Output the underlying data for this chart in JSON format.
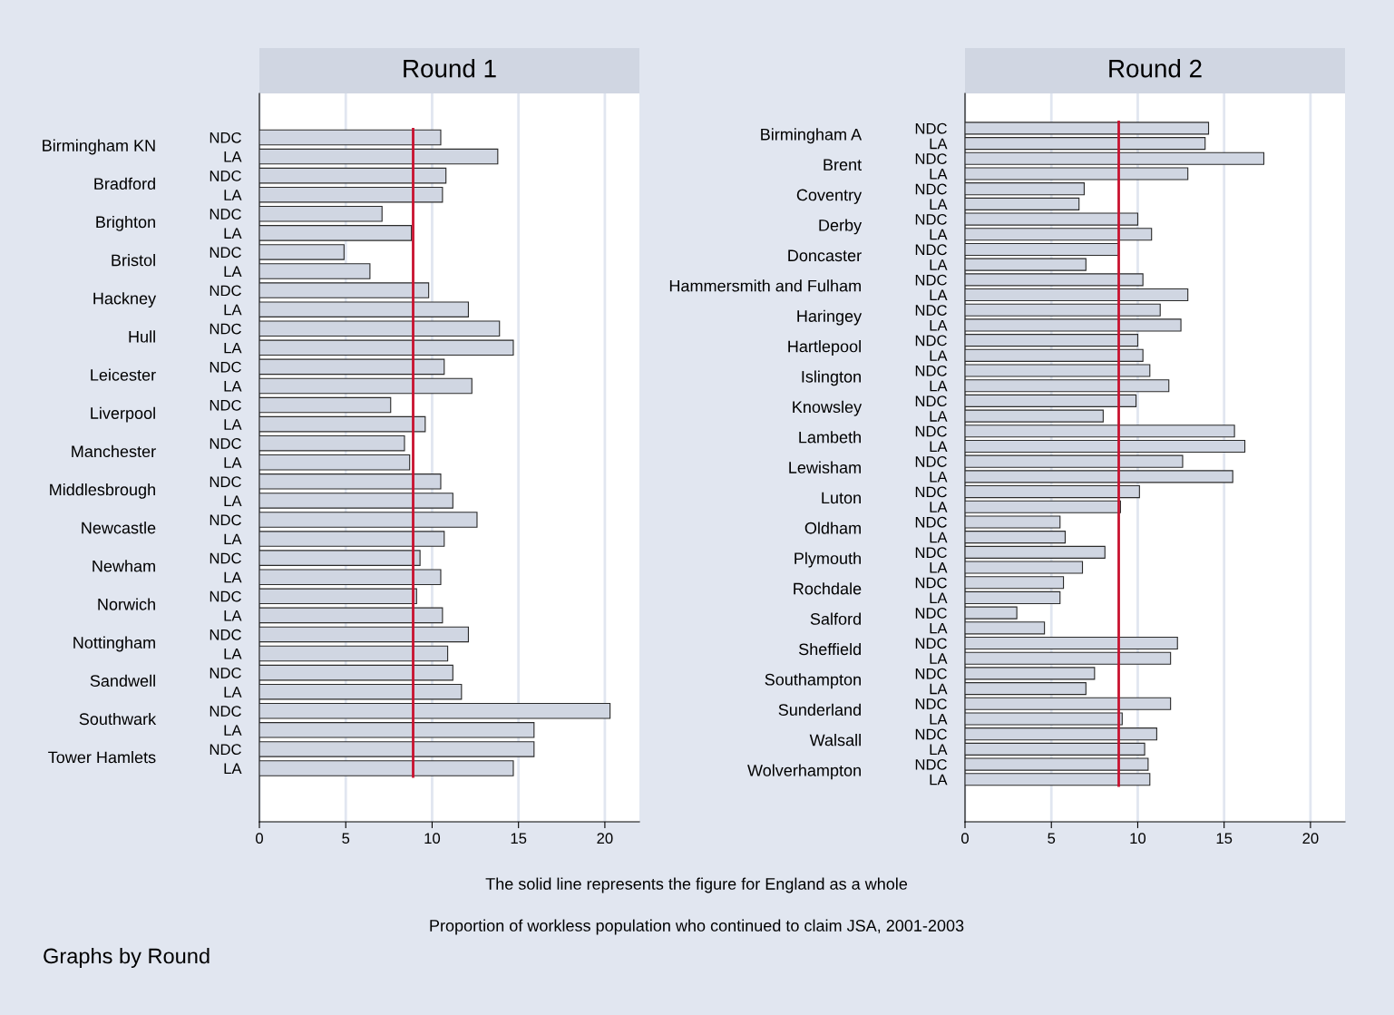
{
  "chart_data": [
    {
      "type": "bar",
      "orientation": "horizontal",
      "title": "Round 1",
      "color": "#d0d6e2",
      "grid": "x",
      "xlim": [
        0,
        22
      ],
      "xticks": [
        0,
        5,
        10,
        15,
        20
      ],
      "categories": [
        "NDC",
        "LA",
        "NDC",
        "LA",
        "NDC",
        "LA",
        "NDC",
        "LA",
        "NDC",
        "LA",
        "NDC",
        "LA",
        "NDC",
        "LA",
        "NDC",
        "LA",
        "NDC",
        "LA",
        "NDC",
        "LA",
        "NDC",
        "LA",
        "NDC",
        "LA",
        "NDC",
        "LA",
        "NDC",
        "LA",
        "NDC",
        "LA",
        "NDC",
        "LA",
        "NDC",
        "LA"
      ],
      "values": [
        10.5,
        13.8,
        10.8,
        10.6,
        7.1,
        8.8,
        4.9,
        6.4,
        9.8,
        12.1,
        13.9,
        14.7,
        10.7,
        12.3,
        7.6,
        9.6,
        8.4,
        8.7,
        10.5,
        11.2,
        12.6,
        10.7,
        9.3,
        10.5,
        9.1,
        10.6,
        12.1,
        10.9,
        11.2,
        11.7,
        20.3,
        15.9,
        15.9,
        14.7
      ],
      "ref_lines": [
        {
          "axis": "x",
          "value": 8.9,
          "label": null,
          "color": "#c8102e"
        }
      ],
      "annotations": [
        "Birmingham KN",
        "Bradford",
        "Brighton",
        "Bristol",
        "Hackney",
        "Hull",
        "Leicester",
        "Liverpool",
        "Manchester",
        "Middlesbrough",
        "Newcastle",
        "Newham",
        "Norwich",
        "Nottingham",
        "Sandwell",
        "Southwark",
        "Tower Hamlets"
      ]
    },
    {
      "type": "bar",
      "orientation": "horizontal",
      "title": "Round 2",
      "color": "#d0d6e2",
      "grid": "x",
      "xlim": [
        0,
        22
      ],
      "xticks": [
        0,
        5,
        10,
        15,
        20
      ],
      "categories": [
        "NDC",
        "LA",
        "NDC",
        "LA",
        "NDC",
        "LA",
        "NDC",
        "LA",
        "NDC",
        "LA",
        "NDC",
        "LA",
        "NDC",
        "LA",
        "NDC",
        "LA",
        "NDC",
        "LA",
        "NDC",
        "LA",
        "NDC",
        "LA",
        "NDC",
        "LA",
        "NDC",
        "LA",
        "NDC",
        "LA",
        "NDC",
        "LA",
        "NDC",
        "LA",
        "NDC",
        "LA",
        "NDC",
        "LA",
        "NDC",
        "LA",
        "NDC",
        "LA",
        "NDC",
        "LA",
        "NDC",
        "LA"
      ],
      "values": [
        14.1,
        13.9,
        17.3,
        12.9,
        6.9,
        6.6,
        10.0,
        10.8,
        8.9,
        7.0,
        10.3,
        12.9,
        11.3,
        12.5,
        10.0,
        10.3,
        10.7,
        11.8,
        9.9,
        8.0,
        15.6,
        16.2,
        12.6,
        15.5,
        10.1,
        9.0,
        5.5,
        5.8,
        8.1,
        6.8,
        5.7,
        5.5,
        3.0,
        4.6,
        12.3,
        11.9,
        7.5,
        7.0,
        11.9,
        9.1,
        11.1,
        10.4,
        10.6,
        10.7
      ],
      "ref_lines": [
        {
          "axis": "x",
          "value": 8.9,
          "label": null,
          "color": "#c8102e"
        }
      ],
      "annotations": [
        "Birmingham A",
        "Brent",
        "Coventry",
        "Derby",
        "Doncaster",
        "Hammersmith and Fulham",
        "Haringey",
        "Hartlepool",
        "Islington",
        "Knowsley",
        "Lambeth",
        "Lewisham",
        "Luton",
        "Oldham",
        "Plymouth",
        "Rochdale",
        "Salford",
        "Sheffield",
        "Southampton",
        "Sunderland",
        "Walsall",
        "Wolverhampton"
      ]
    },
    {
      "type": "other",
      "annotations": [
        "The solid line represents the figure for England as a whole",
        "Proportion of workless population who continued to claim JSA, 2001-2003",
        "Graphs by Round"
      ]
    }
  ]
}
